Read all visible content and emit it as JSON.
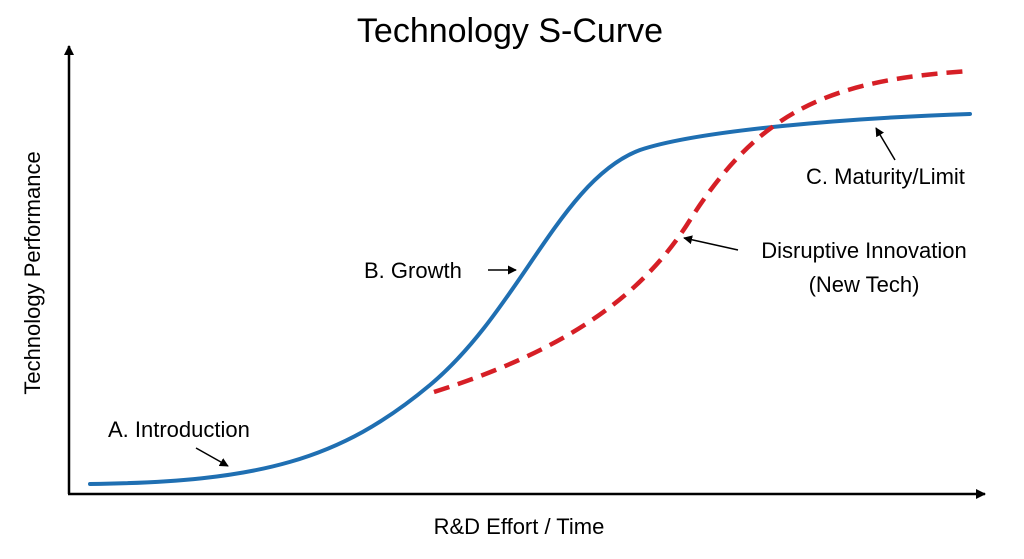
{
  "title": "Technology S-Curve",
  "axes": {
    "x_label": "R&D Effort / Time",
    "y_label": "Technology Performance"
  },
  "annotations": {
    "introduction": "A. Introduction",
    "growth": "B. Growth",
    "maturity": "C. Maturity/Limit",
    "disruptive_line1": "Disruptive Innovation",
    "disruptive_line2": "(New Tech)"
  },
  "colors": {
    "main_curve": "#1f6fb2",
    "disruptive_curve": "#d61f26",
    "axes": "#000000"
  }
}
